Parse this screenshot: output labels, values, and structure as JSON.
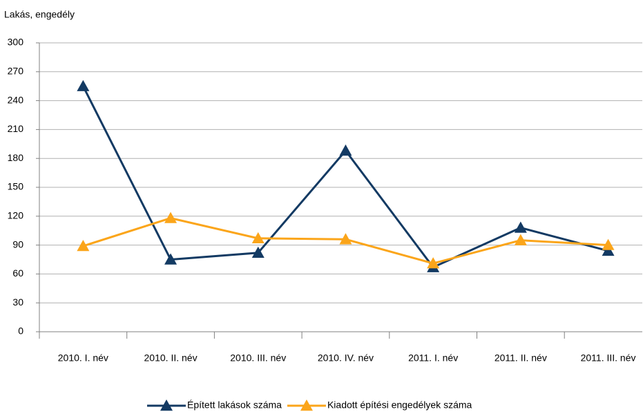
{
  "chart_data": {
    "type": "line",
    "y_label": "Lakás, engedély",
    "categories": [
      "2010. I. név",
      "2010. II. név",
      "2010. III. név",
      "2010. IV. név",
      "2011. I. név",
      "2011. II. név",
      "2011. III. név"
    ],
    "series": [
      {
        "name": "Épített lakások száma",
        "color": "#133a63",
        "values": [
          255,
          75,
          82,
          188,
          67,
          108,
          84
        ]
      },
      {
        "name": "Kiadott építési engedélyek száma",
        "color": "#fba51a",
        "values": [
          89,
          118,
          97,
          96,
          71,
          95,
          90
        ]
      }
    ],
    "ylim": [
      0,
      300
    ],
    "yticks": [
      0,
      30,
      60,
      90,
      120,
      150,
      180,
      210,
      240,
      270,
      300
    ],
    "grid": true,
    "legend": "bottom"
  }
}
